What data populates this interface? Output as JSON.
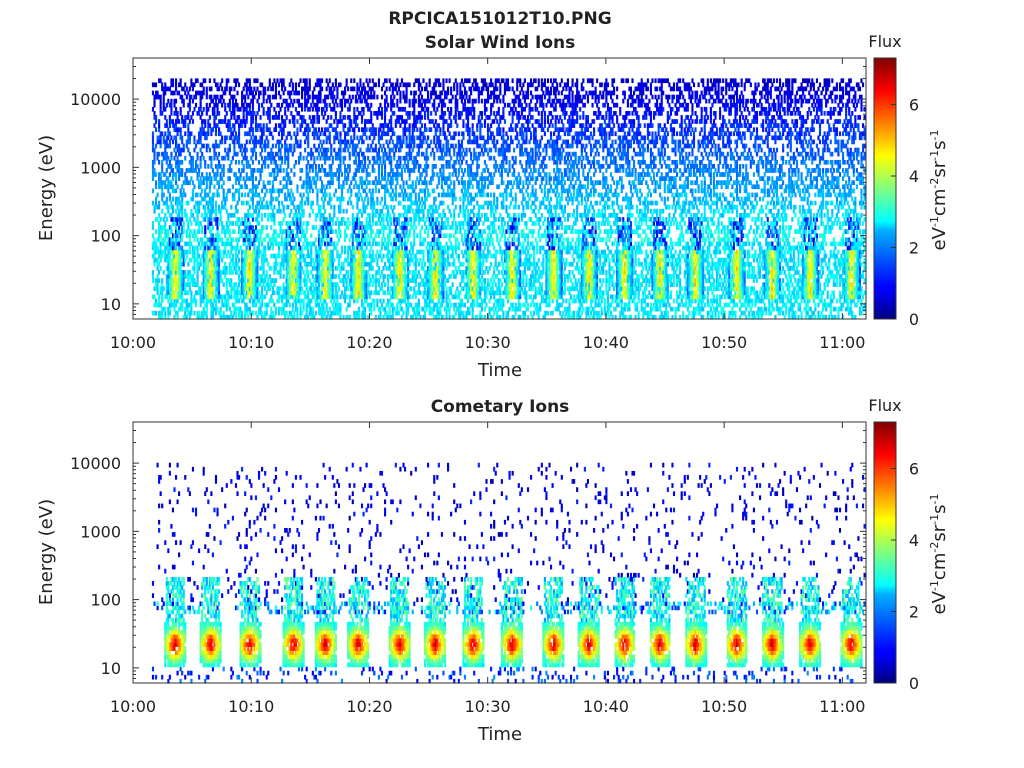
{
  "figure_title": "RPCICA151012T10.PNG",
  "chart_data": [
    {
      "type": "heatmap",
      "title": "Solar Wind Ions",
      "xlabel": "Time",
      "ylabel": "Energy (eV)",
      "x_ticks": [
        "10:00",
        "10:10",
        "10:20",
        "10:30",
        "10:40",
        "10:50",
        "11:00"
      ],
      "x_range": [
        "10:00",
        "11:02"
      ],
      "y_scale": "log",
      "y_ticks": [
        "10",
        "100",
        "1000",
        "10000"
      ],
      "y_range_eV": [
        6,
        40000
      ],
      "colorbar": {
        "label": "Flux",
        "unit": "eV-1 cm-2 sr-1 s-1",
        "ticks": [
          "0",
          "2",
          "4",
          "6"
        ],
        "range": [
          0,
          7.3
        ],
        "colormap": "jet"
      },
      "bursts_minutes": [
        3.5,
        6.5,
        9.8,
        13.5,
        16.2,
        19.0,
        22.5,
        25.5,
        28.7,
        32.0,
        35.5,
        38.5,
        41.5,
        44.5,
        47.5,
        51.0,
        54.0,
        57.2,
        60.7
      ],
      "features": {
        "background_energy_eV": [
          100,
          20000
        ],
        "background_level": [
          0.5,
          2.8
        ],
        "burst_peak_level": 4.8,
        "burst_energy_eV": [
          12,
          60
        ]
      }
    },
    {
      "type": "heatmap",
      "title": "Cometary Ions",
      "xlabel": "Time",
      "ylabel": "Energy (eV)",
      "x_ticks": [
        "10:00",
        "10:10",
        "10:20",
        "10:30",
        "10:40",
        "10:50",
        "11:00"
      ],
      "x_range": [
        "10:00",
        "11:02"
      ],
      "y_scale": "log",
      "y_ticks": [
        "10",
        "100",
        "1000",
        "10000"
      ],
      "y_range_eV": [
        6,
        40000
      ],
      "colorbar": {
        "label": "Flux",
        "unit": "eV-1 cm-2 sr-1 s-1",
        "ticks": [
          "0",
          "2",
          "4",
          "6"
        ],
        "range": [
          0,
          7.3
        ],
        "colormap": "jet"
      },
      "bursts_minutes": [
        3.5,
        6.5,
        9.8,
        13.5,
        16.2,
        19.0,
        22.5,
        25.5,
        28.7,
        32.0,
        35.5,
        38.5,
        41.5,
        44.5,
        47.5,
        51.0,
        54.0,
        57.2,
        60.7
      ],
      "features": {
        "sparse_points_energy_eV": [
          100,
          10000
        ],
        "sparse_points_level": [
          0.3,
          1.2
        ],
        "burst_peak_level": 6.8,
        "burst_energy_eV": [
          10,
          45
        ]
      }
    }
  ]
}
